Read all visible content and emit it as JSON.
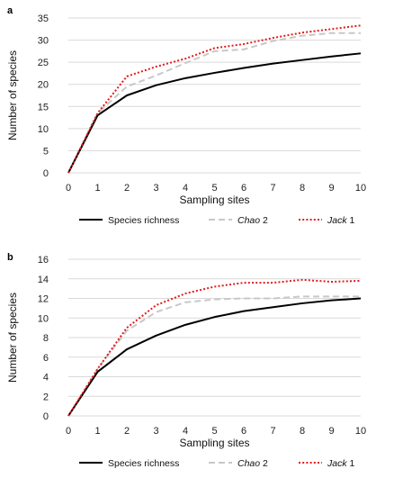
{
  "chart_data": [
    {
      "type": "line",
      "panel_label": "a",
      "x": [
        0,
        1,
        2,
        3,
        4,
        5,
        6,
        7,
        8,
        9,
        10
      ],
      "xlabel": "Sampling sites",
      "ylabel": "Number of species",
      "ylim": [
        0,
        35
      ],
      "yticks": [
        0,
        5,
        10,
        15,
        20,
        25,
        30,
        35
      ],
      "grid": "horizontal",
      "legend_position": "bottom",
      "series": [
        {
          "name": "Species richness",
          "color": "#000000",
          "style": "solid",
          "values": [
            0,
            13,
            17.5,
            19.8,
            21.4,
            22.6,
            23.7,
            24.7,
            25.5,
            26.3,
            27.0
          ]
        },
        {
          "name_italic": "Chao",
          "name_suffix": " 2",
          "color": "#c8c8c8",
          "style": "dashed",
          "values": [
            0,
            13.5,
            19.5,
            22.0,
            24.8,
            27.5,
            27.9,
            29.8,
            31.0,
            31.6,
            31.6
          ]
        },
        {
          "name_italic": "Jack",
          "name_suffix": " 1",
          "color": "#e31a1c",
          "style": "dotted",
          "values": [
            0,
            13.5,
            21.8,
            24.0,
            25.8,
            28.2,
            29.1,
            30.5,
            31.7,
            32.5,
            33.3
          ]
        }
      ]
    },
    {
      "type": "line",
      "panel_label": "b",
      "x": [
        0,
        1,
        2,
        3,
        4,
        5,
        6,
        7,
        8,
        9,
        10
      ],
      "xlabel": "Sampling sites",
      "ylabel": "Number of species",
      "ylim": [
        0,
        16
      ],
      "yticks": [
        0,
        2,
        4,
        6,
        8,
        10,
        12,
        14,
        16
      ],
      "grid": "horizontal",
      "legend_position": "bottom",
      "series": [
        {
          "name": "Species richness",
          "color": "#000000",
          "style": "solid",
          "values": [
            0,
            4.5,
            6.8,
            8.2,
            9.3,
            10.1,
            10.7,
            11.1,
            11.5,
            11.8,
            12.0
          ]
        },
        {
          "name_italic": "Chao",
          "name_suffix": " 2",
          "color": "#c8c8c8",
          "style": "dashed",
          "values": [
            0,
            4.8,
            8.7,
            10.6,
            11.6,
            11.9,
            12.0,
            12.0,
            12.2,
            12.2,
            12.2
          ]
        },
        {
          "name_italic": "Jack",
          "name_suffix": " 1",
          "color": "#e31a1c",
          "style": "dotted",
          "values": [
            0,
            4.8,
            9.0,
            11.3,
            12.5,
            13.2,
            13.6,
            13.6,
            13.9,
            13.7,
            13.8
          ]
        }
      ]
    }
  ]
}
